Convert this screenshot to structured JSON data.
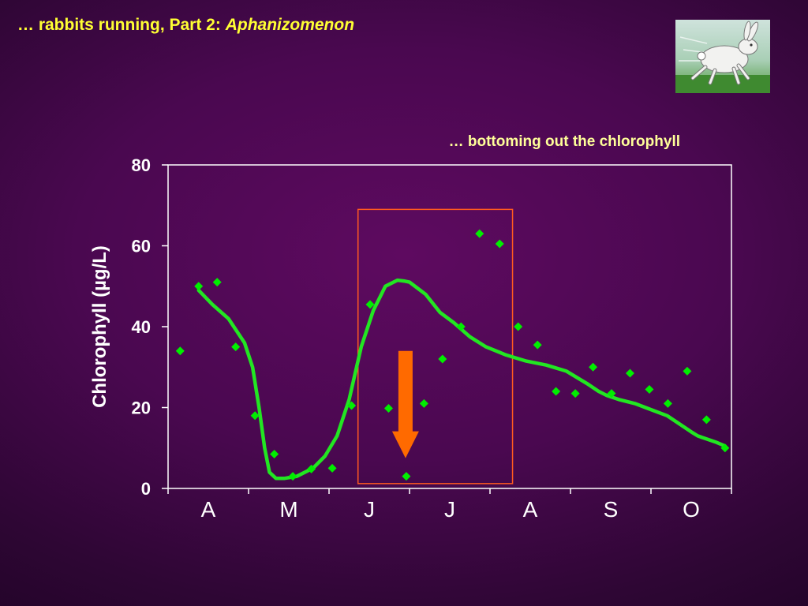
{
  "slide": {
    "title_prefix": "… rabbits running, Part 2: ",
    "title_italic": "Aphanizomenon",
    "image_icon": "running-rabbit-illustration"
  },
  "chart_data": {
    "type": "scatter",
    "title": "… bottoming out the chlorophyll",
    "ylabel": "Chlorophyll (µg/L)",
    "xlabel": "",
    "categories": [
      "A",
      "M",
      "J",
      "J",
      "A",
      "S",
      "O"
    ],
    "ylim": [
      0,
      80
    ],
    "yticks": [
      "0",
      "20",
      "40",
      "60",
      "80"
    ],
    "grid": false,
    "colors": {
      "points": "#00ee00",
      "trend": "#22e622",
      "highlight_box": "#ff5a20",
      "arrow": "#ff6a00",
      "axis": "#ffffff"
    },
    "series": [
      {
        "type": "scatter",
        "x": [
          0.15,
          0.38,
          0.61,
          0.84,
          1.08,
          1.32,
          1.55,
          1.78,
          2.04,
          2.28,
          2.51,
          2.74,
          2.96,
          3.18,
          3.41,
          3.64,
          3.87,
          4.12,
          4.35,
          4.59,
          4.82,
          5.06,
          5.28,
          5.51,
          5.74,
          5.98,
          6.21,
          6.45,
          6.69,
          6.92
        ],
        "values": [
          34,
          50,
          51,
          35,
          18,
          8.5,
          3,
          4.8,
          5,
          20.5,
          45.5,
          19.8,
          3,
          21,
          32,
          40,
          63,
          60.5,
          40,
          35.5,
          24,
          23.5,
          30,
          23.5,
          28.5,
          24.5,
          21,
          29,
          17,
          10
        ]
      },
      {
        "type": "line",
        "x": [
          0.38,
          0.55,
          0.75,
          0.95,
          1.05,
          1.13,
          1.2,
          1.26,
          1.34,
          1.45,
          1.6,
          1.8,
          1.95,
          2.1,
          2.25,
          2.4,
          2.55,
          2.7,
          2.85,
          2.93,
          3.0,
          3.2,
          3.38,
          3.55,
          3.75,
          3.95,
          4.2,
          4.45,
          4.7,
          4.95,
          5.2,
          5.35,
          5.45,
          5.6,
          5.8,
          6.0,
          6.2,
          6.35,
          6.5,
          6.58,
          6.65,
          6.8,
          6.92
        ],
        "values": [
          49,
          45.5,
          42,
          36,
          30,
          20,
          10,
          4,
          2.5,
          2.5,
          3,
          5,
          8,
          13,
          22,
          35,
          44,
          50,
          51.5,
          51.3,
          51,
          48,
          43.5,
          41,
          37.5,
          35,
          33,
          31.5,
          30.5,
          29,
          26,
          24,
          23,
          22,
          21,
          19.5,
          18,
          16,
          14,
          13,
          12.5,
          11.5,
          10.5
        ]
      }
    ],
    "annotations": [
      {
        "type": "box",
        "x_range": [
          2.36,
          4.28
        ],
        "y_range": [
          1.2,
          69
        ]
      },
      {
        "type": "arrow",
        "direction": "down",
        "x": 2.95,
        "y_from": 34,
        "y_to": 7.5
      }
    ]
  }
}
